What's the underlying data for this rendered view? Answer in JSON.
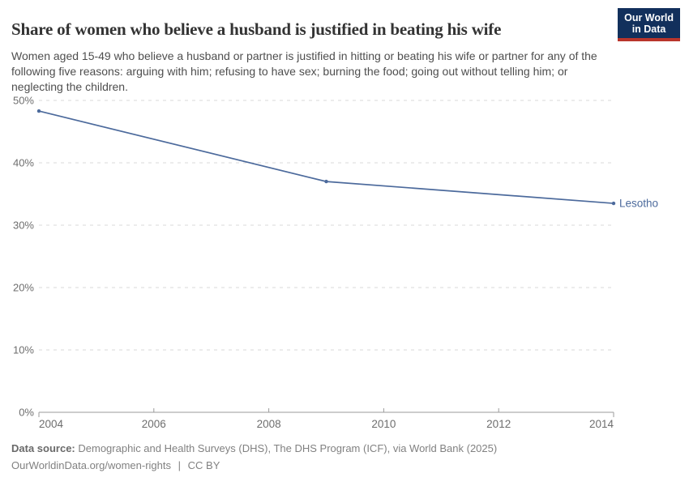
{
  "header": {
    "logo": {
      "line1": "Our World",
      "line2": "in Data",
      "bg_color": "#12305c",
      "bar_color": "#b9352b"
    }
  },
  "chart_data": {
    "type": "line",
    "title": "Share of women who believe a husband is justified in beating his wife",
    "subtitle": "Women aged 15-49 who believe a husband or partner is justified in hitting or beating his wife or partner for any of the following five reasons: arguing with him; refusing to have sex; burning the food; going out without telling him; or neglecting the children.",
    "xlabel": "",
    "ylabel": "",
    "xlim": [
      2004,
      2014
    ],
    "ylim": [
      0,
      50
    ],
    "x_ticks": [
      "2004",
      "2006",
      "2008",
      "2010",
      "2012",
      "2014"
    ],
    "y_ticks": [
      0,
      10,
      20,
      30,
      40,
      50
    ],
    "y_suffix": "%",
    "grid": "horizontal-dashed",
    "legend_position": "line-end-label",
    "series": [
      {
        "name": "Lesotho",
        "color": "#4c6a9c",
        "x": [
          2004,
          2009,
          2014
        ],
        "values": [
          48.3,
          37.0,
          33.5
        ]
      }
    ]
  },
  "footer": {
    "source_label": "Data source:",
    "source_text": "Demographic and Health Surveys (DHS), The DHS Program (ICF), via World Bank (2025)",
    "link": "OurWorldinData.org/women-rights",
    "separator": "|",
    "license": "CC BY"
  }
}
